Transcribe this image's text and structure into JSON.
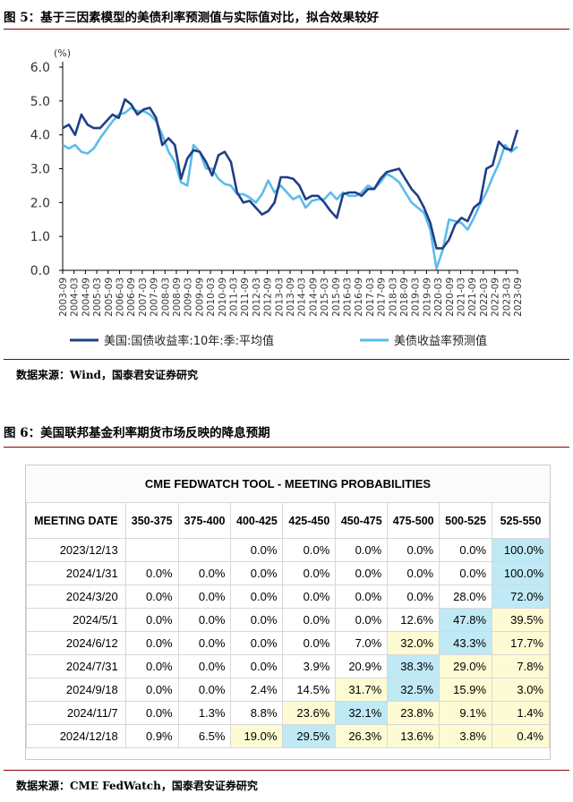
{
  "figure5": {
    "title": "图 5：基于三因素模型的美债利率预测值与实际值对比，拟合效果较好",
    "source": "数据来源：Wind，国泰君安证券研究",
    "chart_data": {
      "type": "line",
      "unit_label": "(%)",
      "ylim": [
        0,
        6
      ],
      "yticks": [
        "0.0",
        "1.0",
        "2.0",
        "3.0",
        "4.0",
        "5.0",
        "6.0"
      ],
      "x_ticks": [
        "2003-09",
        "2004-03",
        "2004-09",
        "2005-03",
        "2005-09",
        "2006-03",
        "2006-09",
        "2007-03",
        "2007-09",
        "2008-03",
        "2008-09",
        "2009-03",
        "2009-09",
        "2010-03",
        "2010-09",
        "2011-03",
        "2011-09",
        "2012-03",
        "2012-09",
        "2013-03",
        "2013-09",
        "2014-03",
        "2014-09",
        "2015-03",
        "2015-09",
        "2016-03",
        "2016-09",
        "2017-03",
        "2017-09",
        "2018-03",
        "2018-09",
        "2019-03",
        "2019-09",
        "2020-03",
        "2020-09",
        "2021-03",
        "2021-09",
        "2022-03",
        "2022-09",
        "2023-03",
        "2023-09"
      ],
      "grid": false,
      "legend_position": "bottom",
      "series": [
        {
          "name": "美国:国债收益率:10年:季:平均值",
          "color": "#1f3f86",
          "values": [
            4.2,
            4.3,
            4.0,
            4.6,
            4.3,
            4.2,
            4.2,
            4.4,
            4.6,
            4.5,
            5.05,
            4.9,
            4.6,
            4.75,
            4.8,
            4.5,
            3.7,
            3.9,
            3.7,
            2.7,
            3.3,
            3.55,
            3.5,
            3.2,
            2.8,
            3.4,
            3.5,
            3.2,
            2.3,
            2.0,
            2.05,
            1.85,
            1.65,
            1.75,
            2.0,
            2.75,
            2.75,
            2.7,
            2.5,
            2.1,
            2.2,
            2.2,
            2.0,
            1.75,
            1.55,
            2.25,
            2.3,
            2.3,
            2.2,
            2.4,
            2.4,
            2.7,
            2.9,
            2.95,
            3.0,
            2.7,
            2.4,
            2.2,
            1.85,
            1.4,
            0.65,
            0.65,
            0.9,
            1.35,
            1.55,
            1.45,
            1.85,
            2.0,
            3.0,
            3.1,
            3.8,
            3.6,
            3.55,
            4.15
          ]
        },
        {
          "name": "美债收益率预测值",
          "color": "#5bbcea",
          "values": [
            3.7,
            3.6,
            3.7,
            3.5,
            3.45,
            3.6,
            3.9,
            4.15,
            4.4,
            4.6,
            4.65,
            4.8,
            4.7,
            4.7,
            4.6,
            4.4,
            4.0,
            3.5,
            3.2,
            2.6,
            2.5,
            3.7,
            3.5,
            3.0,
            3.0,
            2.7,
            2.55,
            2.5,
            2.25,
            2.25,
            2.15,
            2.0,
            2.25,
            2.65,
            2.3,
            2.5,
            2.3,
            2.1,
            2.2,
            1.85,
            2.05,
            2.1,
            2.1,
            2.3,
            2.1,
            2.3,
            2.2,
            2.2,
            2.3,
            2.5,
            2.4,
            2.6,
            2.85,
            2.75,
            2.6,
            2.3,
            2.0,
            1.85,
            1.7,
            1.2,
            0.05,
            0.6,
            1.5,
            1.45,
            1.4,
            1.2,
            1.55,
            1.95,
            2.3,
            2.75,
            3.15,
            3.7,
            3.5,
            3.65
          ]
        }
      ]
    }
  },
  "figure6": {
    "title": "图 6：美国联邦基金利率期货市场反映的降息预期",
    "source": "数据来源：CME FedWatch，国泰君安证券研究",
    "tool_title": "CME FEDWATCH TOOL - MEETING PROBABILITIES",
    "colors": {
      "blue_highlight": "#bfe9f5",
      "yellow_highlight": "#fdfbd3"
    },
    "columns": [
      "MEETING DATE",
      "350-375",
      "375-400",
      "400-425",
      "425-450",
      "450-475",
      "475-500",
      "500-525",
      "525-550"
    ],
    "rows": [
      {
        "date": "2023/12/13",
        "values": [
          "",
          "",
          "0.0%",
          "0.0%",
          "0.0%",
          "0.0%",
          "0.0%",
          "100.0%"
        ],
        "hl": [
          "",
          "",
          "",
          "",
          "",
          "",
          "",
          "b"
        ]
      },
      {
        "date": "2024/1/31",
        "values": [
          "0.0%",
          "0.0%",
          "0.0%",
          "0.0%",
          "0.0%",
          "0.0%",
          "0.0%",
          "100.0%"
        ],
        "hl": [
          "",
          "",
          "",
          "",
          "",
          "",
          "",
          "b"
        ]
      },
      {
        "date": "2024/3/20",
        "values": [
          "0.0%",
          "0.0%",
          "0.0%",
          "0.0%",
          "0.0%",
          "0.0%",
          "28.0%",
          "72.0%"
        ],
        "hl": [
          "",
          "",
          "",
          "",
          "",
          "",
          "",
          "b"
        ]
      },
      {
        "date": "2024/5/1",
        "values": [
          "0.0%",
          "0.0%",
          "0.0%",
          "0.0%",
          "0.0%",
          "12.6%",
          "47.8%",
          "39.5%"
        ],
        "hl": [
          "",
          "",
          "",
          "",
          "",
          "",
          "b",
          "y"
        ]
      },
      {
        "date": "2024/6/12",
        "values": [
          "0.0%",
          "0.0%",
          "0.0%",
          "0.0%",
          "7.0%",
          "32.0%",
          "43.3%",
          "17.7%"
        ],
        "hl": [
          "",
          "",
          "",
          "",
          "",
          "y",
          "b",
          "y"
        ]
      },
      {
        "date": "2024/7/31",
        "values": [
          "0.0%",
          "0.0%",
          "0.0%",
          "3.9%",
          "20.9%",
          "38.3%",
          "29.0%",
          "7.8%"
        ],
        "hl": [
          "",
          "",
          "",
          "",
          "",
          "b",
          "y",
          "y"
        ]
      },
      {
        "date": "2024/9/18",
        "values": [
          "0.0%",
          "0.0%",
          "2.4%",
          "14.5%",
          "31.7%",
          "32.5%",
          "15.9%",
          "3.0%"
        ],
        "hl": [
          "",
          "",
          "",
          "",
          "y",
          "b",
          "y",
          "y"
        ]
      },
      {
        "date": "2024/11/7",
        "values": [
          "0.0%",
          "1.3%",
          "8.8%",
          "23.6%",
          "32.1%",
          "23.8%",
          "9.1%",
          "1.4%"
        ],
        "hl": [
          "",
          "",
          "",
          "y",
          "b",
          "y",
          "y",
          "y"
        ]
      },
      {
        "date": "2024/12/18",
        "values": [
          "0.9%",
          "6.5%",
          "19.0%",
          "29.5%",
          "26.3%",
          "13.6%",
          "3.8%",
          "0.4%"
        ],
        "hl": [
          "",
          "",
          "y",
          "b",
          "y",
          "y",
          "y",
          "y"
        ]
      }
    ]
  }
}
